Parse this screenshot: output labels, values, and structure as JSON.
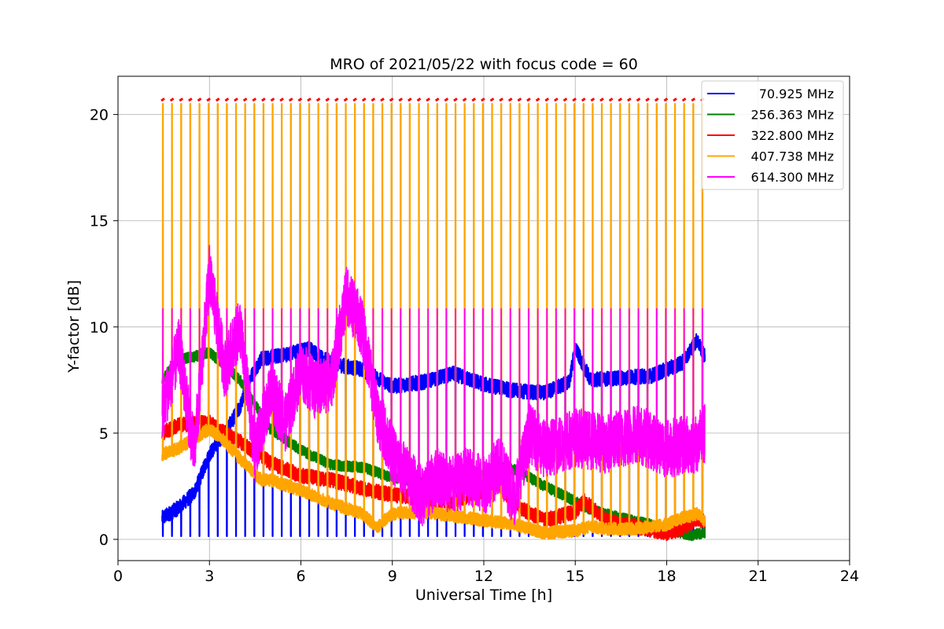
{
  "chart_data": {
    "type": "line",
    "title": "MRO of 2021/05/22 with focus code = 60",
    "xlabel": "Universal Time [h]",
    "ylabel": "Y-factor [dB]",
    "xlim": [
      0,
      24
    ],
    "ylim": [
      -1,
      21.8
    ],
    "xticks": [
      0,
      3,
      6,
      9,
      12,
      15,
      18,
      21,
      24
    ],
    "yticks": [
      0,
      5,
      10,
      15,
      20
    ],
    "grid": true,
    "legend_position": "top-right",
    "time_range": [
      1.45,
      19.25
    ],
    "calibration_cycle_hours": 0.3,
    "series": [
      {
        "name": "70.925 MHz",
        "color": "#0000ff",
        "x": [
          1.45,
          2.0,
          2.5,
          3.0,
          3.5,
          4.0,
          4.3,
          4.7,
          5.5,
          6.3,
          6.7,
          7.3,
          8.0,
          8.5,
          9.0,
          10.0,
          11.0,
          12.0,
          13.0,
          14.0,
          14.8,
          15.0,
          15.5,
          16.5,
          17.5,
          18.5,
          19.0,
          19.25
        ],
        "y": [
          1.0,
          1.5,
          2.2,
          4.0,
          5.0,
          6.2,
          7.5,
          8.5,
          8.7,
          9.0,
          8.5,
          8.2,
          8.0,
          7.6,
          7.2,
          7.4,
          7.8,
          7.3,
          7.0,
          6.9,
          7.4,
          9.0,
          7.5,
          7.6,
          7.7,
          8.3,
          9.4,
          8.6
        ],
        "spike_low": 0.15
      },
      {
        "name": "256.363 MHz",
        "color": "#008000",
        "x": [
          1.45,
          2.0,
          2.5,
          3.0,
          3.5,
          4.0,
          5.0,
          6.0,
          7.0,
          8.0,
          9.0,
          10.0,
          11.0,
          12.0,
          12.5,
          13.0,
          14.0,
          15.0,
          15.5,
          16.5,
          17.5,
          18.2,
          18.8,
          19.25
        ],
        "y": [
          7.5,
          8.5,
          8.6,
          8.8,
          8.2,
          7.5,
          5.2,
          4.2,
          3.5,
          3.4,
          2.9,
          2.7,
          2.8,
          3.0,
          3.4,
          3.3,
          2.5,
          1.8,
          1.4,
          1.0,
          0.7,
          0.4,
          0.2,
          0.3
        ]
      },
      {
        "name": "322.800 MHz",
        "color": "#ff0000",
        "x": [
          1.45,
          2.0,
          3.0,
          3.5,
          4.0,
          5.0,
          6.0,
          7.0,
          8.0,
          9.0,
          10.0,
          11.0,
          12.0,
          12.5,
          13.0,
          14.0,
          15.0,
          15.3,
          16.0,
          17.0,
          18.0,
          18.5,
          19.0,
          19.25
        ],
        "y": [
          5.0,
          5.4,
          5.5,
          5.0,
          4.6,
          3.6,
          3.0,
          2.8,
          2.4,
          2.1,
          1.9,
          1.8,
          2.3,
          2.6,
          1.6,
          0.9,
          1.3,
          1.8,
          0.9,
          0.6,
          0.3,
          0.5,
          1.0,
          0.8
        ]
      },
      {
        "name": "407.738 MHz",
        "color": "#ffa500",
        "x": [
          1.45,
          2.0,
          3.0,
          3.5,
          4.0,
          4.7,
          5.0,
          6.0,
          7.0,
          8.0,
          8.5,
          9.0,
          10.0,
          11.0,
          12.0,
          13.0,
          14.0,
          15.0,
          15.5,
          16.0,
          17.0,
          18.0,
          18.5,
          19.0,
          19.25
        ],
        "y": [
          4.0,
          4.3,
          5.2,
          4.6,
          3.8,
          2.8,
          2.8,
          2.3,
          1.7,
          1.2,
          0.6,
          1.2,
          1.3,
          1.1,
          0.9,
          0.7,
          0.3,
          0.4,
          0.6,
          0.5,
          0.5,
          0.7,
          1.0,
          1.2,
          0.9
        ],
        "spike_high": 20.5,
        "peak_marker_color": "#ff0000",
        "peak_marker_value": 20.65
      },
      {
        "name": "614.300 MHz",
        "color": "#ff00ff",
        "x": [
          1.45,
          2.0,
          2.5,
          3.0,
          3.5,
          4.0,
          4.5,
          5.0,
          5.5,
          6.0,
          6.5,
          7.0,
          7.5,
          8.0,
          8.5,
          9.0,
          9.5,
          10.0,
          10.5,
          11.0,
          11.5,
          12.0,
          12.5,
          13.0,
          13.5,
          14.0,
          15.0,
          16.0,
          17.0,
          18.0,
          19.0,
          19.25
        ],
        "y": [
          6.0,
          9.0,
          4.0,
          12.5,
          8.0,
          10.0,
          4.0,
          7.0,
          5.5,
          8.0,
          7.0,
          7.5,
          11.5,
          10.0,
          6.0,
          4.0,
          3.0,
          2.0,
          3.0,
          2.5,
          3.0,
          2.5,
          3.5,
          2.0,
          5.0,
          4.2,
          4.8,
          4.5,
          5.0,
          4.3,
          4.5,
          5.0
        ],
        "spike_high": 10.85
      }
    ]
  }
}
